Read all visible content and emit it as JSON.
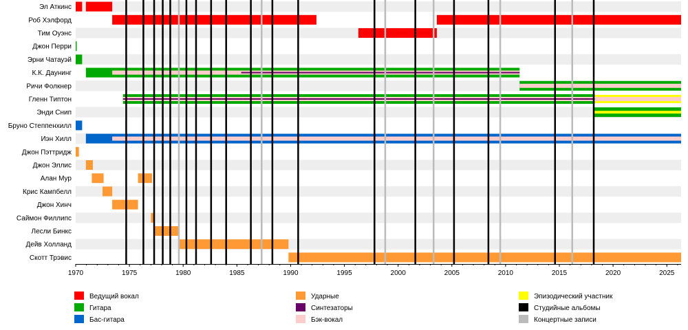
{
  "chart_data": {
    "type": "timeline",
    "xlim": [
      1970,
      2026.33
    ],
    "x_ticks": [
      "1970",
      "1975",
      "1980",
      "1985",
      "1990",
      "1995",
      "2000",
      "2005",
      "2010",
      "2015",
      "2020",
      "2025"
    ],
    "colors": {
      "vocal": "#ff0000",
      "guitar": "#00aa00",
      "bass": "#0066cc",
      "drums": "#ff9933",
      "synth": "#660066",
      "backing": "#ffcccc",
      "guest": "#ffff00",
      "studio": "#000000",
      "live": "#bbbbbb",
      "row_even": "#eeeeee",
      "row_odd": "#ffffff"
    },
    "members": [
      {
        "name": "Эл Аткинс",
        "bars": [
          {
            "role": "vocal",
            "start": 1969.7,
            "end": 1970.6
          },
          {
            "role": "vocal",
            "start": 1970.95,
            "end": 1973.4
          }
        ]
      },
      {
        "name": "Роб Хэлфорд",
        "bars": [
          {
            "role": "vocal",
            "start": 1973.4,
            "end": 1992.4
          },
          {
            "role": "vocal",
            "start": 2003.6,
            "end": 2026.33
          }
        ]
      },
      {
        "name": "Тим Оуэнс",
        "bars": [
          {
            "role": "vocal",
            "start": 1996.3,
            "end": 2003.6
          }
        ]
      },
      {
        "name": "Джон Перри",
        "bars": [
          {
            "role": "guitar",
            "start": 1969.9,
            "end": 1970.05
          }
        ]
      },
      {
        "name": "Эрни Чатауэй",
        "bars": [
          {
            "role": "guitar",
            "start": 1969.9,
            "end": 1970.6
          }
        ]
      },
      {
        "name": "К.К. Даунинг",
        "bars": [
          {
            "role": "guitar",
            "start": 1970.95,
            "end": 2011.3
          }
        ],
        "overlays": [
          {
            "role": "backing",
            "start": 1973.4,
            "end": 2011.3
          },
          {
            "role": "synth",
            "start": 1985.4,
            "end": 2011.3
          }
        ]
      },
      {
        "name": "Ричи Фолкнер",
        "bars": [
          {
            "role": "guitar",
            "start": 2011.3,
            "end": 2026.33
          }
        ],
        "overlays": [
          {
            "role": "backing",
            "start": 2011.3,
            "end": 2026.33
          }
        ]
      },
      {
        "name": "Гленн Типтон",
        "bars": [
          {
            "role": "guitar",
            "start": 1974.4,
            "end": 2018.3
          }
        ],
        "overlays": [
          {
            "role": "backing",
            "start": 1974.4,
            "end": 2026.33
          },
          {
            "role": "synth",
            "start": 1974.4,
            "end": 2018.3
          }
        ],
        "after": [
          {
            "role": "guest",
            "start": 2018.3,
            "end": 2026.33
          }
        ]
      },
      {
        "name": "Энди Снип",
        "bars": [
          {
            "role": "guitar",
            "start": 2018.2,
            "end": 2026.33
          }
        ],
        "overlays": [
          {
            "role": "guest",
            "start": 2018.2,
            "end": 2026.33
          }
        ]
      },
      {
        "name": "Бруно Степпенхилл",
        "bars": [
          {
            "role": "bass",
            "start": 1969.9,
            "end": 1970.6
          }
        ]
      },
      {
        "name": "Иэн Хилл",
        "bars": [
          {
            "role": "bass",
            "start": 1970.95,
            "end": 2026.33
          }
        ],
        "overlays": [
          {
            "role": "backing",
            "start": 1973.4,
            "end": 2026.33
          }
        ]
      },
      {
        "name": "Джон Пэттридж",
        "bars": [
          {
            "role": "drums",
            "start": 1969.9,
            "end": 1970.3
          }
        ]
      },
      {
        "name": "Джон Эллис",
        "bars": [
          {
            "role": "drums",
            "start": 1970.95,
            "end": 1971.6
          }
        ]
      },
      {
        "name": "Алан Мур",
        "bars": [
          {
            "role": "drums",
            "start": 1971.5,
            "end": 1972.6
          },
          {
            "role": "drums",
            "start": 1975.8,
            "end": 1977.1
          }
        ]
      },
      {
        "name": "Крис Кампбелл",
        "bars": [
          {
            "role": "drums",
            "start": 1972.5,
            "end": 1973.4
          }
        ]
      },
      {
        "name": "Джон Хинч",
        "bars": [
          {
            "role": "drums",
            "start": 1973.4,
            "end": 1975.8
          }
        ]
      },
      {
        "name": "Саймон Филлипс",
        "bars": [
          {
            "role": "drums",
            "start": 1977.0,
            "end": 1977.25
          }
        ]
      },
      {
        "name": "Лесли Бинкс",
        "bars": [
          {
            "role": "drums",
            "start": 1977.25,
            "end": 1979.6
          }
        ]
      },
      {
        "name": "Дейв Холланд",
        "bars": [
          {
            "role": "drums",
            "start": 1979.6,
            "end": 1989.8
          }
        ]
      },
      {
        "name": "Скотт Трэвис",
        "bars": [
          {
            "role": "drums",
            "start": 1989.8,
            "end": 2026.33
          }
        ]
      }
    ],
    "studio_albums": [
      1974.7,
      1976.3,
      1977.3,
      1978.1,
      1978.8,
      1980.3,
      1981.2,
      1982.6,
      1984.0,
      1986.3,
      1988.3,
      1990.7,
      1997.8,
      2001.6,
      2005.2,
      2008.4,
      2014.6,
      2018.2
    ],
    "live_albums": [
      1979.6,
      1987.3,
      1998.8,
      2003.3,
      2009.5,
      2016.2
    ],
    "legend": [
      {
        "role": "vocal",
        "label": "Ведущий вокал"
      },
      {
        "role": "guitar",
        "label": "Гитара"
      },
      {
        "role": "bass",
        "label": "Бас-гитара"
      },
      {
        "role": "drums",
        "label": "Ударные"
      },
      {
        "role": "synth",
        "label": "Синтезаторы"
      },
      {
        "role": "backing",
        "label": "Бэк-вокал"
      },
      {
        "role": "guest",
        "label": "Эпизодический участник"
      },
      {
        "role": "studio",
        "label": "Студийные альбомы"
      },
      {
        "role": "live",
        "label": "Концертные записи"
      }
    ]
  }
}
